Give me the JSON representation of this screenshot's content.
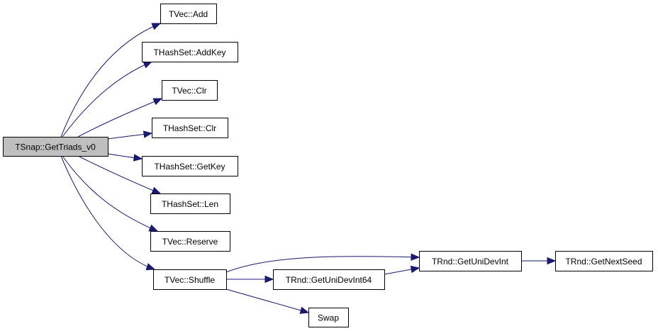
{
  "diagram": {
    "edge_color": "#191970",
    "root_fill": "#bfbfbf",
    "nodes": [
      {
        "id": "root",
        "label": "TSnap::GetTriads_v0"
      },
      {
        "id": "vec_add",
        "label": "TVec::Add"
      },
      {
        "id": "hs_addkey",
        "label": "THashSet::AddKey"
      },
      {
        "id": "vec_clr",
        "label": "TVec::Clr"
      },
      {
        "id": "hs_clr",
        "label": "THashSet::Clr"
      },
      {
        "id": "hs_getkey",
        "label": "THashSet::GetKey"
      },
      {
        "id": "hs_len",
        "label": "THashSet::Len"
      },
      {
        "id": "vec_reserve",
        "label": "TVec::Reserve"
      },
      {
        "id": "vec_shuffle",
        "label": "TVec::Shuffle"
      },
      {
        "id": "rnd_unidevint64",
        "label": "TRnd::GetUniDevInt64"
      },
      {
        "id": "swap",
        "label": "Swap"
      },
      {
        "id": "rnd_unidevint",
        "label": "TRnd::GetUniDevInt"
      },
      {
        "id": "rnd_nextseed",
        "label": "TRnd::GetNextSeed"
      }
    ],
    "edges": [
      {
        "from": "root",
        "to": "vec_add"
      },
      {
        "from": "root",
        "to": "hs_addkey"
      },
      {
        "from": "root",
        "to": "vec_clr"
      },
      {
        "from": "root",
        "to": "hs_clr"
      },
      {
        "from": "root",
        "to": "hs_getkey"
      },
      {
        "from": "root",
        "to": "hs_len"
      },
      {
        "from": "root",
        "to": "vec_reserve"
      },
      {
        "from": "root",
        "to": "vec_shuffle"
      },
      {
        "from": "vec_shuffle",
        "to": "rnd_unidevint"
      },
      {
        "from": "vec_shuffle",
        "to": "rnd_unidevint64"
      },
      {
        "from": "vec_shuffle",
        "to": "swap"
      },
      {
        "from": "rnd_unidevint64",
        "to": "rnd_unidevint"
      },
      {
        "from": "rnd_unidevint",
        "to": "rnd_nextseed"
      }
    ]
  }
}
